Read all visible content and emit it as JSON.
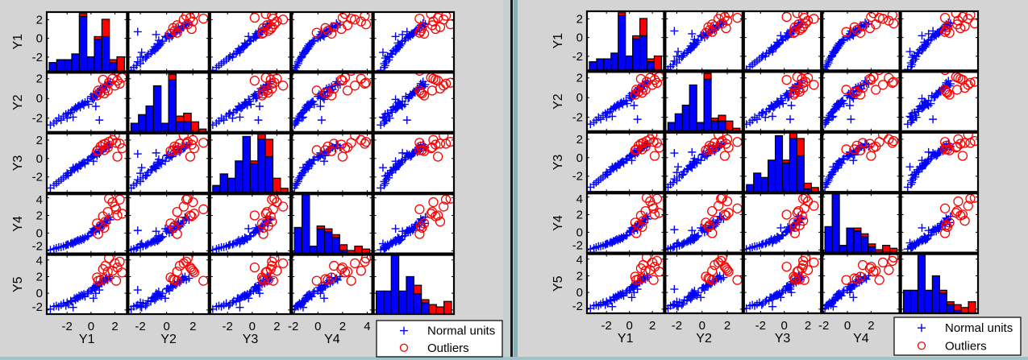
{
  "chart_data": {
    "type": "scatter",
    "title": "",
    "variables": [
      {
        "name": "Y1",
        "xrange": [
          -3.7,
          3.0
        ],
        "yrange": [
          -3.5,
          2.8
        ]
      },
      {
        "name": "Y2",
        "xrange": [
          -2.9,
          3.2
        ],
        "yrange": [
          -3.4,
          2.6
        ]
      },
      {
        "name": "Y3",
        "xrange": [
          -3.4,
          3.1
        ],
        "yrange": [
          -3.7,
          2.7
        ]
      },
      {
        "name": "Y4",
        "xrange": [
          -2.1,
          4.4
        ],
        "yrange": [
          -2.3,
          4.4
        ]
      },
      {
        "name": "Y5",
        "xrange": [
          -2.5,
          4.5
        ],
        "yrange": [
          -2.5,
          4.6
        ]
      }
    ],
    "series": [
      {
        "name": "Normal units",
        "marker": "plus",
        "color": "#0000ff",
        "points": [
          [
            -3.4,
            -2.7,
            -3.2,
            -1.9,
            -1.9
          ],
          [
            -3.1,
            -2.5,
            -2.9,
            -1.8,
            -1.6
          ],
          [
            -2.9,
            -2.3,
            -2.7,
            -1.7,
            -1.5
          ],
          [
            -2.7,
            -2.0,
            -2.5,
            -1.6,
            -1.6
          ],
          [
            -2.5,
            -2.2,
            -2.3,
            -1.6,
            -1.4
          ],
          [
            -2.3,
            -1.8,
            -2.1,
            -1.5,
            -1.2
          ],
          [
            -2.1,
            -1.6,
            -1.9,
            -1.4,
            -1.5
          ],
          [
            -2.0,
            -2.0,
            -1.6,
            -1.3,
            -1.1
          ],
          [
            -1.9,
            -1.5,
            -1.8,
            -1.3,
            -1.3
          ],
          [
            -1.7,
            -1.4,
            -1.5,
            -1.2,
            -0.9
          ],
          [
            -1.6,
            -1.2,
            -1.3,
            -1.1,
            -1.0
          ],
          [
            -1.4,
            -1.1,
            -1.2,
            -1.0,
            -0.6
          ],
          [
            -1.3,
            -0.9,
            -1.0,
            -1.0,
            -0.8
          ],
          [
            -1.2,
            -1.0,
            -0.9,
            -0.9,
            -0.5
          ],
          [
            -1.1,
            -0.8,
            -1.1,
            -0.8,
            -0.6
          ],
          [
            -1.0,
            -0.7,
            -0.7,
            -0.9,
            -0.3
          ],
          [
            -0.9,
            -0.9,
            -0.8,
            -0.7,
            -0.4
          ],
          [
            -0.8,
            -0.6,
            -0.6,
            -0.8,
            -0.2
          ],
          [
            -0.7,
            -0.5,
            -0.5,
            -0.6,
            -0.3
          ],
          [
            -0.6,
            -0.7,
            -0.4,
            -0.7,
            -0.1
          ],
          [
            -0.5,
            -0.4,
            -0.6,
            -0.5,
            -0.4
          ],
          [
            -0.3,
            -0.3,
            -0.2,
            -0.4,
            0.0
          ],
          [
            -0.2,
            -0.6,
            -0.1,
            -0.3,
            0.2
          ],
          [
            0.0,
            0.2,
            0.1,
            0.0,
            0.3
          ],
          [
            0.1,
            0.0,
            0.3,
            0.2,
            0.5
          ],
          [
            0.2,
            0.4,
            0.2,
            0.1,
            0.7
          ],
          [
            0.3,
            0.1,
            0.4,
            0.4,
            0.6
          ],
          [
            0.4,
            0.5,
            0.5,
            0.3,
            0.9
          ],
          [
            0.5,
            0.3,
            0.3,
            0.6,
            0.8
          ],
          [
            0.6,
            0.7,
            0.6,
            0.5,
            1.0
          ],
          [
            0.7,
            0.6,
            0.8,
            0.8,
            1.1
          ],
          [
            0.8,
            1.0,
            0.7,
            0.7,
            1.3
          ],
          [
            0.9,
            0.8,
            1.0,
            1.0,
            1.2
          ],
          [
            1.0,
            1.1,
            0.9,
            0.9,
            1.5
          ],
          [
            1.1,
            0.9,
            1.2,
            1.2,
            1.4
          ],
          [
            1.2,
            1.3,
            1.1,
            1.4,
            1.7
          ],
          [
            1.3,
            1.2,
            1.3,
            1.1,
            1.9
          ],
          [
            1.4,
            1.5,
            1.4,
            1.6,
            1.6
          ],
          [
            1.5,
            1.4,
            1.2,
            1.8,
            2.0
          ],
          [
            1.6,
            1.7,
            1.5,
            1.5,
            1.8
          ],
          [
            0.4,
            -0.8,
            0.6,
            0.2,
            0.0
          ],
          [
            -1.5,
            -1.9,
            -1.0,
            -1.2,
            -1.7
          ],
          [
            0.2,
            -0.1,
            -0.3,
            0.5,
            -0.6
          ],
          [
            0.7,
            -2.2,
            0.5,
            0.3,
            0.4
          ]
        ]
      },
      {
        "name": "Outliers",
        "marker": "circle",
        "color": "#ff0000",
        "points": [
          [
            0.5,
            0.3,
            0.8,
            1.1,
            1.9
          ],
          [
            0.6,
            0.8,
            0.9,
            -0.1,
            1.5
          ],
          [
            0.8,
            0.6,
            1.3,
            0.8,
            1.6
          ],
          [
            1.0,
            1.9,
            1.5,
            1.9,
            2.9
          ],
          [
            1.1,
            0.5,
            0.9,
            0.6,
            1.7
          ],
          [
            1.2,
            1.0,
            1.6,
            1.3,
            3.3
          ],
          [
            1.4,
            0.8,
            1.2,
            2.4,
            2.6
          ],
          [
            1.5,
            1.6,
            1.8,
            3.9,
            4.2
          ],
          [
            1.8,
            2.0,
            2.0,
            3.5,
            2.7
          ],
          [
            2.0,
            1.3,
            2.5,
            3.0,
            3.6
          ],
          [
            2.1,
            2.8,
            1.7,
            2.7,
            1.5
          ],
          [
            2.2,
            1.8,
            0.2,
            2.0,
            3.1
          ],
          [
            2.4,
            1.5,
            1.6,
            3.8,
            3.8
          ],
          [
            2.6,
            2.1,
            1.1,
            2.2,
            2.5
          ]
        ]
      }
    ],
    "histogram_max_count": 20.5,
    "panels": [
      {
        "x_tick_labels": [
          [
            "-2",
            "0",
            "2"
          ],
          [
            "-2",
            "0",
            "2"
          ],
          [
            "-2",
            "0",
            "2"
          ],
          [
            "-2",
            "0",
            "2",
            "4"
          ],
          []
        ],
        "y_tick_labels": [
          [
            "-2",
            "0",
            "2"
          ],
          [
            "-2",
            "0",
            "2"
          ],
          [
            "-2",
            "0",
            "2"
          ],
          [
            "-2",
            "0",
            "2",
            "4"
          ],
          [
            "-2",
            "0",
            "2",
            "4"
          ]
        ],
        "legend": [
          "Normal units",
          "Outliers"
        ],
        "histograms": [
          {
            "normal": [
              3,
              4,
              4,
              6,
              19,
              5,
              11,
              12,
              3,
              0
            ],
            "outliers": [
              0,
              0,
              0,
              0,
              1,
              0,
              1,
              6,
              1,
              5
            ]
          },
          {
            "normal": [
              3,
              6,
              9,
              16,
              3,
              18,
              3.5,
              3.5,
              0,
              0
            ],
            "outliers": [
              0,
              0,
              0,
              0,
              0,
              2,
              2,
              3,
              3.5,
              1
            ]
          },
          {
            "normal": [
              2.5,
              6.5,
              5,
              11,
              19.5,
              10,
              18.5,
              12.5,
              0,
              0
            ],
            "outliers": [
              0,
              0,
              0,
              0,
              0,
              1,
              2,
              6,
              5,
              1.5
            ]
          },
          {
            "normal": [
              9,
              20.5,
              2.5,
              8.5,
              7.5,
              5.5,
              1,
              0,
              0,
              0
            ],
            "outliers": [
              0,
              0,
              0,
              1,
              1,
              1,
              2,
              1,
              2.5,
              1.5
            ]
          },
          {
            "normal": [
              8,
              8,
              20.5,
              8,
              13,
              7,
              4,
              0,
              0,
              0
            ],
            "outliers": [
              0,
              0,
              0,
              0,
              0,
              3,
              1,
              3.3,
              2.5,
              4.4
            ]
          }
        ]
      },
      {
        "x_tick_labels": [
          [
            "-2",
            "0",
            "2"
          ],
          [
            "-2",
            "0",
            "2"
          ],
          [
            "-2",
            "0",
            "2"
          ],
          [
            "-2",
            "0",
            "2"
          ],
          []
        ],
        "y_tick_labels": [
          [
            "-2",
            "0",
            "2"
          ],
          [
            "-2",
            "0",
            "2"
          ],
          [
            "-2",
            "0",
            "2"
          ],
          [
            "-2",
            "0",
            "2",
            "4"
          ],
          [
            "-2",
            "0",
            "2",
            "4"
          ]
        ],
        "legend": [
          "Normal units",
          "Outliers"
        ],
        "histograms": [
          {
            "normal": [
              3,
              4,
              4,
              6,
              19,
              5,
              11,
              12,
              3,
              0
            ],
            "outliers": [
              0,
              0,
              0,
              0,
              1,
              0,
              1,
              6,
              1,
              5
            ]
          },
          {
            "normal": [
              3,
              6,
              9,
              16,
              3,
              18,
              3.5,
              3.5,
              0,
              0
            ],
            "outliers": [
              0,
              0,
              0,
              0,
              0,
              2,
              1,
              2,
              3.5,
              1
            ]
          },
          {
            "normal": [
              2.5,
              6.5,
              5,
              11,
              19.5,
              10,
              18.5,
              12.5,
              1,
              0
            ],
            "outliers": [
              0,
              0,
              0,
              0,
              0,
              1,
              2,
              6,
              2,
              1.5
            ]
          },
          {
            "normal": [
              9,
              20.5,
              2.5,
              8.5,
              7.5,
              5.5,
              2,
              0,
              0,
              0
            ],
            "outliers": [
              0,
              0,
              0,
              0,
              1,
              1,
              1,
              1,
              2.5,
              1.5
            ]
          },
          {
            "normal": [
              8,
              8,
              20.5,
              8,
              13,
              7,
              3,
              1,
              0,
              0
            ],
            "outliers": [
              0,
              0,
              0,
              0,
              0,
              1,
              1,
              2,
              2,
              4
            ]
          }
        ]
      }
    ]
  }
}
